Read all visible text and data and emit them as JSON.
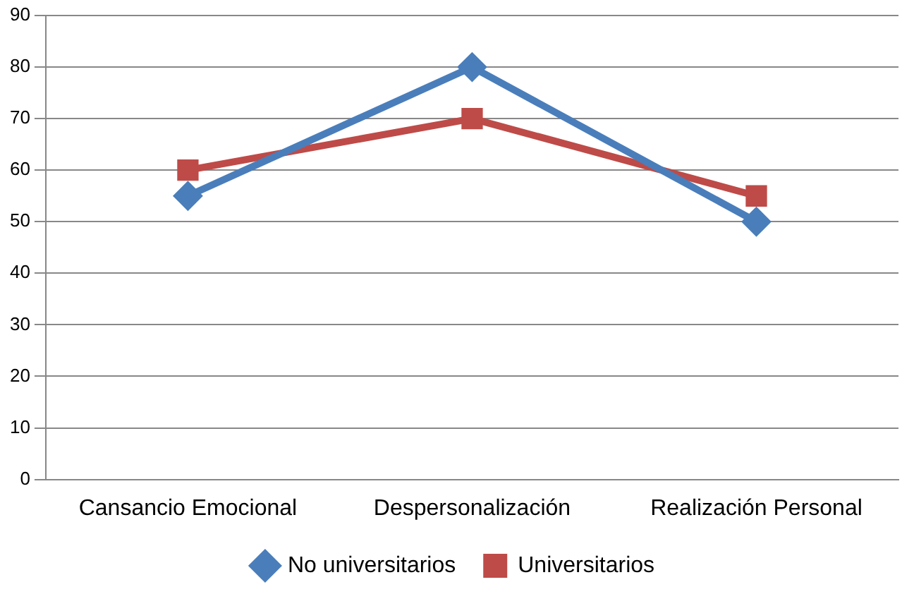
{
  "chart_data": {
    "type": "line",
    "categories": [
      "Cansancio Emocional",
      "Despersonalización",
      "Realización Personal"
    ],
    "series": [
      {
        "name": "No universitarios",
        "color": "#4a7ebb",
        "marker": "diamond",
        "values": [
          55,
          80,
          50
        ]
      },
      {
        "name": "Universitarios",
        "color": "#be4b48",
        "marker": "square",
        "values": [
          60,
          70,
          55
        ]
      }
    ],
    "ylim": [
      0,
      90
    ],
    "yticks": [
      0,
      10,
      20,
      30,
      40,
      50,
      60,
      70,
      80,
      90
    ],
    "grid": "y",
    "legend": "bottom",
    "line_style": "solid"
  }
}
